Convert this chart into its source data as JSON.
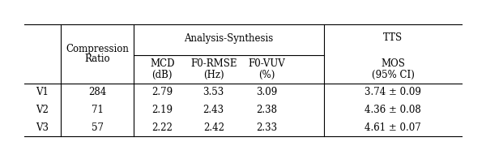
{
  "rows": [
    "V1",
    "V2",
    "V3"
  ],
  "compression_ratio": [
    "284",
    "71",
    "57"
  ],
  "mcd": [
    "2.79",
    "2.19",
    "2.22"
  ],
  "f0_rmse": [
    "3.53",
    "2.43",
    "2.42"
  ],
  "f0_vuv": [
    "3.09",
    "2.38",
    "2.33"
  ],
  "mos": [
    "3.74 ± 0.09",
    "4.36 ± 0.08",
    "4.61 ± 0.07"
  ],
  "bg_color": "#ffffff",
  "text_color": "#000000",
  "font_size": 8.5
}
